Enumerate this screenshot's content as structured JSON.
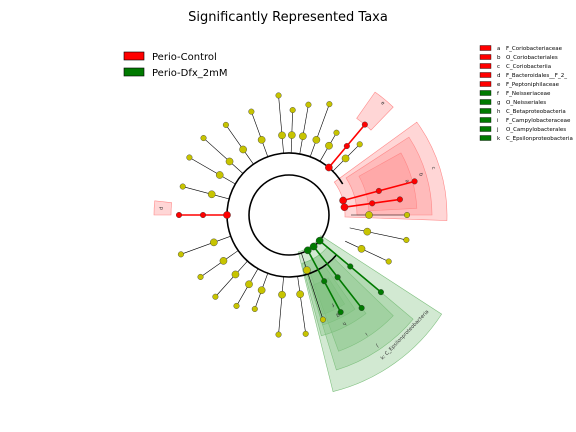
{
  "title": "Significantly Represented Taxa",
  "colors": {
    "control": "#ff0000",
    "treated": "#007a00",
    "control_shade": "#ff8a8a",
    "treated_shade": "#7fc07f",
    "node_neutral": "#c7c400",
    "edge": "#000000"
  },
  "legend_main": [
    {
      "name": "Perio-Control",
      "color": "#ff0000"
    },
    {
      "name": "Perio-Dfx_2mM",
      "color": "#007a00"
    }
  ],
  "legend_taxa": [
    {
      "key": "a",
      "name": "F_Coriobacteriaceae",
      "group": "control"
    },
    {
      "key": "b",
      "name": "O_Coriobacteriales",
      "group": "control"
    },
    {
      "key": "c",
      "name": "C_Coriobacteriia",
      "group": "control"
    },
    {
      "key": "d",
      "name": "F_Bacteroidales__F_2_",
      "group": "control"
    },
    {
      "key": "e",
      "name": "F_Peptoniphilaceae",
      "group": "control"
    },
    {
      "key": "f",
      "name": "F_Neisseriaceae",
      "group": "treated"
    },
    {
      "key": "g",
      "name": "O_Neisseriales",
      "group": "treated"
    },
    {
      "key": "h",
      "name": "C_Betaproteobacteria",
      "group": "treated"
    },
    {
      "key": "i",
      "name": "F_Campylobacteraceae",
      "group": "treated"
    },
    {
      "key": "j",
      "name": "O_Campylobacterales",
      "group": "treated"
    },
    {
      "key": "k",
      "name": "C_Epsilonproteobacteria",
      "group": "treated"
    }
  ],
  "sector_letters": {
    "a": "a",
    "b": "b",
    "c": "c",
    "d": "d",
    "e": "e",
    "f": "f",
    "g": "g",
    "h": "h",
    "i": "i",
    "j": "j",
    "k": "k",
    "k_full": "k: C_Epsilonproteobacteria"
  }
}
